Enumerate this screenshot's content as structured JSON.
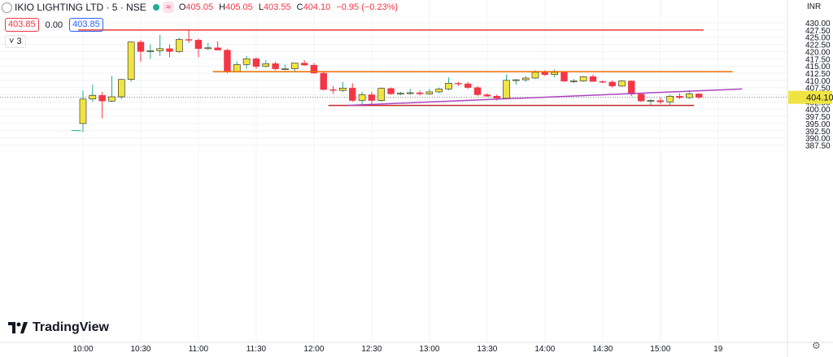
{
  "header": {
    "title": "IKIO LIGHTING LTD · 5 · NSE",
    "badge": "≈",
    "ohlc": {
      "o_label": "O",
      "o": "405.05",
      "h_label": "H",
      "h": "405.05",
      "l_label": "L",
      "l": "403.55",
      "c_label": "C",
      "c": "404.10",
      "change": "−0.95 (−0.23%)"
    },
    "sell_price": "403.85",
    "spread": "0.00",
    "buy_price": "403.85",
    "indicator_count": "3",
    "indicator_chevron": "˅"
  },
  "currency": "INR",
  "logo_text": "TradingView",
  "settings_icon": "gear-icon",
  "colors": {
    "up": "#f0e442",
    "down": "#f23645",
    "up_border": "#222222",
    "up_wick": "#22ab94",
    "down_wick": "#f23645",
    "last_price_bg": "#f0e442"
  },
  "chart_data": {
    "type": "candlestick",
    "price_axis": {
      "min": 386.25,
      "max": 431.25,
      "ticks": [
        "430.00",
        "427.50",
        "425.00",
        "422.50",
        "420.00",
        "417.50",
        "415.00",
        "412.50",
        "410.00",
        "407.50",
        "405.00",
        "402.50",
        "400.00",
        "397.50",
        "395.00",
        "392.50",
        "390.00",
        "387.50"
      ]
    },
    "time_ticks": [
      {
        "label": "10:00",
        "bar": 0
      },
      {
        "label": "10:30",
        "bar": 6
      },
      {
        "label": "11:00",
        "bar": 12
      },
      {
        "label": "11:30",
        "bar": 18
      },
      {
        "label": "12:00",
        "bar": 24
      },
      {
        "label": "12:30",
        "bar": 30
      },
      {
        "label": "13:00",
        "bar": 36
      },
      {
        "label": "13:30",
        "bar": 42
      },
      {
        "label": "14:00",
        "bar": 48
      },
      {
        "label": "14:30",
        "bar": 54
      },
      {
        "label": "15:00",
        "bar": 60
      },
      {
        "label": "19",
        "bar": 66
      }
    ],
    "last_price": "404.10",
    "last_price_value": 404.1,
    "pre_bar": {
      "o": 392.6,
      "h": 392.6,
      "l": 392.5,
      "c": 392.5
    },
    "candles": [
      {
        "o": 395.0,
        "h": 406.5,
        "l": 392.0,
        "c": 403.5
      },
      {
        "o": 403.5,
        "h": 408.5,
        "l": 402.5,
        "c": 404.8
      },
      {
        "o": 404.8,
        "h": 406.0,
        "l": 396.8,
        "c": 402.8
      },
      {
        "o": 402.8,
        "h": 411.5,
        "l": 402.5,
        "c": 404.3
      },
      {
        "o": 404.3,
        "h": 410.5,
        "l": 403.5,
        "c": 410.3
      },
      {
        "o": 410.3,
        "h": 423.5,
        "l": 409.5,
        "c": 423.3
      },
      {
        "o": 423.3,
        "h": 424.0,
        "l": 416.5,
        "c": 420.0
      },
      {
        "o": 420.0,
        "h": 422.5,
        "l": 417.5,
        "c": 420.3
      },
      {
        "o": 420.3,
        "h": 425.8,
        "l": 418.5,
        "c": 421.0
      },
      {
        "o": 421.0,
        "h": 422.5,
        "l": 418.0,
        "c": 420.0
      },
      {
        "o": 420.0,
        "h": 424.8,
        "l": 419.5,
        "c": 424.2
      },
      {
        "o": 424.2,
        "h": 427.3,
        "l": 423.0,
        "c": 424.0
      },
      {
        "o": 424.0,
        "h": 424.5,
        "l": 418.0,
        "c": 421.0
      },
      {
        "o": 421.0,
        "h": 423.0,
        "l": 420.5,
        "c": 421.3
      },
      {
        "o": 421.3,
        "h": 423.5,
        "l": 420.5,
        "c": 420.5
      },
      {
        "o": 420.5,
        "h": 421.0,
        "l": 412.5,
        "c": 413.0
      },
      {
        "o": 413.0,
        "h": 416.5,
        "l": 412.8,
        "c": 415.5
      },
      {
        "o": 415.5,
        "h": 418.5,
        "l": 414.0,
        "c": 417.5
      },
      {
        "o": 417.5,
        "h": 418.0,
        "l": 414.0,
        "c": 414.8
      },
      {
        "o": 414.8,
        "h": 417.0,
        "l": 414.5,
        "c": 415.8
      },
      {
        "o": 415.8,
        "h": 416.5,
        "l": 413.5,
        "c": 414.0
      },
      {
        "o": 414.0,
        "h": 415.5,
        "l": 413.5,
        "c": 414.0
      },
      {
        "o": 414.0,
        "h": 416.0,
        "l": 413.0,
        "c": 416.0
      },
      {
        "o": 416.0,
        "h": 417.0,
        "l": 415.0,
        "c": 415.3
      },
      {
        "o": 415.3,
        "h": 416.0,
        "l": 412.3,
        "c": 412.5
      },
      {
        "o": 412.5,
        "h": 412.8,
        "l": 406.5,
        "c": 406.8
      },
      {
        "o": 406.8,
        "h": 408.0,
        "l": 405.3,
        "c": 406.5
      },
      {
        "o": 406.5,
        "h": 409.5,
        "l": 406.0,
        "c": 407.3
      },
      {
        "o": 407.3,
        "h": 409.0,
        "l": 402.5,
        "c": 403.0
      },
      {
        "o": 403.0,
        "h": 406.0,
        "l": 401.5,
        "c": 405.0
      },
      {
        "o": 405.0,
        "h": 406.0,
        "l": 401.5,
        "c": 403.0
      },
      {
        "o": 403.0,
        "h": 407.5,
        "l": 402.5,
        "c": 407.2
      },
      {
        "o": 407.2,
        "h": 407.5,
        "l": 405.0,
        "c": 405.3
      },
      {
        "o": 405.3,
        "h": 406.0,
        "l": 404.8,
        "c": 405.5
      },
      {
        "o": 405.5,
        "h": 407.0,
        "l": 405.0,
        "c": 405.7
      },
      {
        "o": 405.7,
        "h": 406.5,
        "l": 404.8,
        "c": 405.3
      },
      {
        "o": 405.3,
        "h": 407.0,
        "l": 405.0,
        "c": 406.0
      },
      {
        "o": 406.0,
        "h": 407.5,
        "l": 405.5,
        "c": 407.0
      },
      {
        "o": 407.0,
        "h": 411.0,
        "l": 406.5,
        "c": 409.0
      },
      {
        "o": 409.0,
        "h": 409.5,
        "l": 408.0,
        "c": 408.8
      },
      {
        "o": 408.8,
        "h": 409.5,
        "l": 407.0,
        "c": 407.5
      },
      {
        "o": 407.5,
        "h": 408.0,
        "l": 404.5,
        "c": 405.0
      },
      {
        "o": 405.0,
        "h": 405.5,
        "l": 404.3,
        "c": 404.5
      },
      {
        "o": 404.5,
        "h": 405.0,
        "l": 403.0,
        "c": 403.8
      },
      {
        "o": 403.8,
        "h": 412.0,
        "l": 403.5,
        "c": 410.0
      },
      {
        "o": 410.0,
        "h": 410.5,
        "l": 408.5,
        "c": 410.2
      },
      {
        "o": 410.2,
        "h": 411.5,
        "l": 409.5,
        "c": 410.8
      },
      {
        "o": 410.8,
        "h": 413.5,
        "l": 410.5,
        "c": 412.8
      },
      {
        "o": 412.8,
        "h": 413.5,
        "l": 411.5,
        "c": 412.0
      },
      {
        "o": 412.0,
        "h": 413.8,
        "l": 411.0,
        "c": 412.8
      },
      {
        "o": 412.8,
        "h": 413.0,
        "l": 409.5,
        "c": 409.7
      },
      {
        "o": 409.7,
        "h": 410.5,
        "l": 409.0,
        "c": 409.8
      },
      {
        "o": 409.8,
        "h": 411.5,
        "l": 409.5,
        "c": 411.3
      },
      {
        "o": 411.3,
        "h": 412.0,
        "l": 409.5,
        "c": 409.6
      },
      {
        "o": 409.6,
        "h": 410.0,
        "l": 409.0,
        "c": 409.4
      },
      {
        "o": 409.4,
        "h": 410.0,
        "l": 407.5,
        "c": 408.0
      },
      {
        "o": 408.0,
        "h": 410.0,
        "l": 407.8,
        "c": 409.8
      },
      {
        "o": 409.8,
        "h": 410.0,
        "l": 404.5,
        "c": 405.2
      },
      {
        "o": 405.2,
        "h": 405.5,
        "l": 402.5,
        "c": 402.8
      },
      {
        "o": 402.8,
        "h": 403.5,
        "l": 401.3,
        "c": 403.0
      },
      {
        "o": 403.0,
        "h": 404.0,
        "l": 401.8,
        "c": 402.5
      },
      {
        "o": 402.5,
        "h": 405.0,
        "l": 401.5,
        "c": 404.5
      },
      {
        "o": 404.5,
        "h": 405.5,
        "l": 403.5,
        "c": 404.0
      },
      {
        "o": 404.0,
        "h": 406.5,
        "l": 403.5,
        "c": 405.3
      },
      {
        "o": 405.3,
        "h": 405.5,
        "l": 403.5,
        "c": 404.1
      }
    ],
    "drawings": [
      {
        "name": "resistance-line",
        "color": "#e53935",
        "bar1": -0.5,
        "price1": 427.5,
        "bar2": 64.5,
        "price2": 427.5
      },
      {
        "name": "orange-level",
        "color": "#ef6c00",
        "bar1": 13.5,
        "price1": 413.0,
        "bar2": 67.5,
        "price2": 413.0
      },
      {
        "name": "support-line",
        "color": "#c62828",
        "bar1": 25.5,
        "price1": 401.3,
        "bar2": 63.5,
        "price2": 401.3
      },
      {
        "name": "trendline",
        "color": "#ab47bc",
        "bar1": 27.5,
        "price1": 401.3,
        "bar2": 68.5,
        "price2": 407.0
      }
    ]
  }
}
